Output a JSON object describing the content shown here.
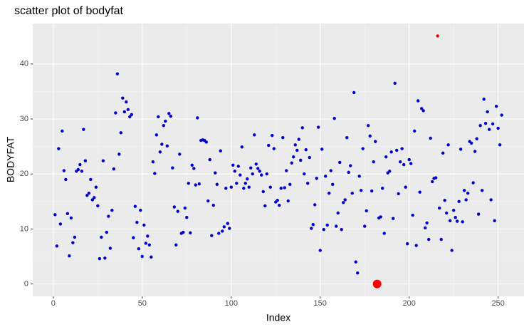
{
  "chart_data": {
    "type": "scatter",
    "title": "scatter plot of bodyfat",
    "x_label": "Index",
    "y_label": "BODYFAT",
    "xlim": [
      -11.55,
      264.55
    ],
    "ylim": [
      -2.255,
      47.355
    ],
    "xticks": [
      0,
      50,
      100,
      150,
      200,
      250
    ],
    "yticks": [
      0,
      10,
      20,
      30,
      40
    ],
    "grid": true,
    "series": [
      {
        "color": "#0000cd",
        "size": 2.2,
        "x": [
          1,
          2,
          3,
          4,
          5,
          6,
          7,
          8,
          9,
          10,
          11,
          12,
          13,
          14,
          15,
          16,
          17,
          18,
          19,
          20,
          21,
          22,
          23,
          24,
          25,
          26,
          27,
          28,
          29,
          30,
          31,
          32,
          33,
          34,
          35,
          36,
          37,
          38,
          39,
          40,
          41,
          42,
          43,
          44,
          45,
          46,
          47,
          48,
          49,
          50,
          51,
          52,
          53,
          54,
          55,
          56,
          57,
          58,
          59,
          60,
          61,
          62,
          63,
          64,
          65,
          66,
          67,
          68,
          69,
          70,
          71,
          72,
          73,
          74,
          75,
          76,
          77,
          78,
          79,
          80,
          81,
          82,
          83,
          84,
          85,
          86,
          87,
          88,
          89,
          90,
          91,
          92,
          93,
          94,
          95,
          96,
          97,
          98,
          99,
          100,
          101,
          102,
          103,
          104,
          105,
          106,
          107,
          108,
          109,
          110,
          111,
          112,
          113,
          114,
          115,
          116,
          117,
          118,
          119,
          120,
          121,
          122,
          123,
          124,
          125,
          126,
          127,
          128,
          129,
          130,
          131,
          132,
          133,
          134,
          135,
          136,
          137,
          138,
          139,
          140,
          141,
          142,
          143,
          144,
          145,
          146,
          147,
          148,
          149,
          150,
          151,
          152,
          153,
          154,
          155,
          156,
          157,
          158,
          159,
          160,
          161,
          162,
          163,
          164,
          165,
          166,
          167,
          168,
          169,
          170,
          171,
          172,
          173,
          174,
          175,
          176,
          177,
          178,
          179,
          180,
          181,
          183,
          184,
          185,
          186,
          187,
          188,
          189,
          190,
          191,
          192,
          193,
          194,
          195,
          196,
          197,
          198,
          199,
          200,
          201,
          202,
          203,
          204,
          205,
          206,
          207,
          208,
          209,
          210,
          211,
          212,
          213,
          214,
          215,
          217,
          218,
          219,
          220,
          221,
          222,
          223,
          224,
          225,
          226,
          227,
          228,
          229,
          230,
          231,
          232,
          233,
          234,
          235,
          236,
          237,
          238,
          239,
          240,
          241,
          242,
          243,
          244,
          245,
          246,
          247,
          248,
          249,
          250,
          251,
          252
        ],
        "values": [
          12.6,
          6.9,
          24.6,
          10.9,
          27.8,
          20.6,
          19.0,
          12.8,
          5.1,
          12.0,
          7.5,
          8.5,
          20.5,
          20.8,
          21.7,
          20.5,
          28.1,
          22.4,
          16.1,
          16.5,
          19.0,
          15.3,
          15.7,
          17.6,
          14.2,
          4.6,
          8.5,
          22.4,
          4.7,
          9.4,
          12.3,
          6.5,
          13.4,
          20.9,
          31.1,
          38.2,
          23.6,
          27.5,
          33.8,
          31.3,
          33.1,
          31.7,
          30.4,
          30.8,
          8.4,
          14.1,
          11.2,
          6.4,
          13.4,
          5.0,
          10.7,
          7.4,
          8.7,
          7.1,
          4.9,
          22.2,
          20.1,
          27.1,
          30.4,
          24.0,
          25.4,
          28.8,
          29.6,
          25.1,
          31.0,
          30.5,
          21.1,
          14.0,
          7.1,
          13.2,
          23.6,
          9.2,
          9.4,
          13.8,
          12.1,
          18.3,
          9.3,
          21.6,
          21.0,
          18.0,
          30.2,
          18.2,
          26.1,
          26.2,
          26.1,
          25.8,
          15.1,
          22.6,
          8.8,
          14.3,
          20.2,
          18.1,
          9.2,
          24.2,
          9.6,
          10.4,
          17.4,
          11.0,
          10.1,
          17.6,
          21.6,
          20.5,
          18.3,
          21.4,
          19.8,
          24.9,
          17.4,
          18.3,
          19.1,
          17.6,
          21.1,
          20.0,
          27.1,
          21.8,
          21.0,
          20.5,
          19.8,
          16.8,
          14.2,
          20.0,
          25.2,
          17.6,
          27.0,
          24.6,
          14.9,
          15.2,
          14.3,
          17.4,
          26.6,
          17.5,
          20.6,
          15.1,
          18.1,
          22.0,
          23.1,
          25.3,
          24.3,
          26.3,
          22.5,
          28.4,
          20.0,
          24.4,
          18.3,
          23.0,
          10.1,
          10.8,
          14.4,
          19.2,
          28.5,
          6.1,
          24.5,
          9.9,
          19.6,
          10.7,
          16.5,
          20.6,
          18.1,
          30.1,
          10.5,
          12.9,
          22.1,
          9.9,
          14.8,
          15.3,
          26.6,
          20.3,
          21.5,
          16.5,
          34.8,
          4.0,
          2.0,
          19.6,
          17.0,
          24.6,
          10.5,
          13.3,
          28.8,
          26.9,
          16.9,
          22.2,
          25.9,
          12.0,
          12.2,
          17.4,
          9.2,
          23.1,
          20.2,
          20.5,
          24.0,
          11.9,
          36.5,
          24.3,
          16.4,
          22.2,
          24.6,
          21.7,
          17.6,
          7.3,
          22.6,
          21.9,
          12.5,
          27.8,
          7.0,
          33.3,
          16.7,
          31.9,
          31.5,
          10.2,
          11.1,
          8.1,
          26.5,
          18.6,
          19.2,
          19.3,
          13.8,
          8.1,
          23.8,
          15.2,
          12.9,
          25.3,
          11.5,
          6.1,
          13.4,
          12.1,
          11.4,
          15.0,
          24.5,
          11.3,
          17.0,
          15.3,
          16.5,
          25.9,
          25.6,
          18.4,
          24.1,
          26.4,
          12.7,
          28.8,
          17.0,
          33.6,
          29.2,
          31.3,
          28.1,
          15.3,
          29.1,
          11.5,
          32.3,
          28.3,
          25.3,
          30.7
        ]
      },
      {
        "color": "#ff0000",
        "size": 2.2,
        "x": [
          216
        ],
        "values": [
          45.1
        ]
      },
      {
        "color": "#ff0000",
        "size": 6,
        "x": [
          182
        ],
        "values": [
          0.0
        ]
      }
    ]
  }
}
